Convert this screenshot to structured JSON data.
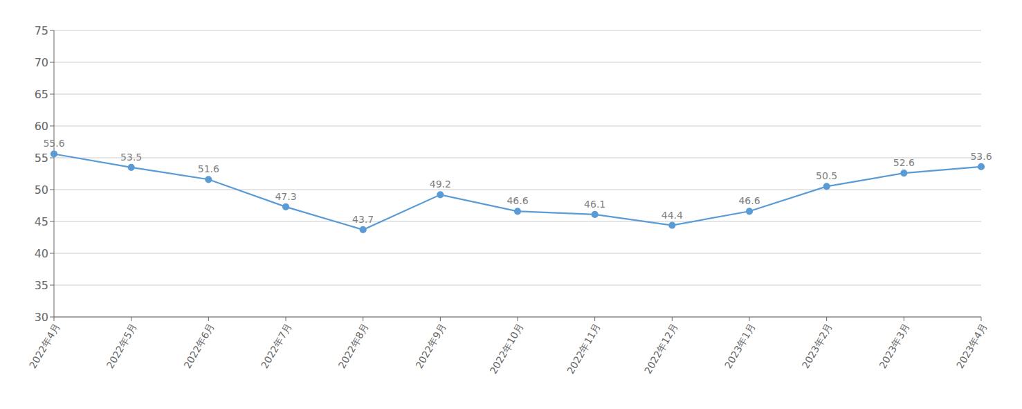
{
  "chart_data": {
    "type": "line",
    "categories": [
      "2022年4月",
      "2022年5月",
      "2022年6月",
      "2022年7月",
      "2022年8月",
      "2022年9月",
      "2022年10月",
      "2022年11月",
      "2022年12月",
      "2023年1月",
      "2023年2月",
      "2023年3月",
      "2023年4月"
    ],
    "values": [
      55.6,
      53.5,
      51.6,
      47.3,
      43.7,
      49.2,
      46.6,
      46.1,
      44.4,
      46.6,
      50.5,
      52.6,
      53.6
    ],
    "color": "#5b9bd5",
    "ylim": [
      30,
      75
    ],
    "yticks": [
      30,
      35,
      40,
      45,
      50,
      55,
      60,
      65,
      70,
      75
    ],
    "grid": true,
    "data_labels": true,
    "marker": "o"
  }
}
